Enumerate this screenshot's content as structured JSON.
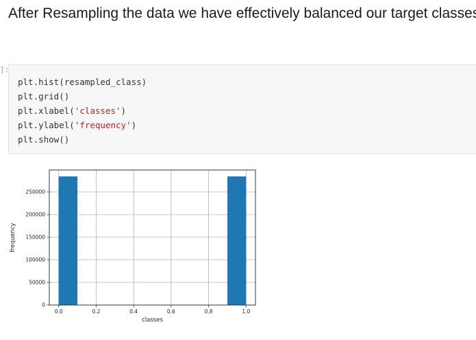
{
  "markdown": {
    "text": "After Resampling the data we have effectively balanced our target classes"
  },
  "code_cell": {
    "prompt": "]:",
    "lines": [
      {
        "parts": [
          {
            "text": "plt.hist(resampled_class)",
            "kind": "plain"
          }
        ]
      },
      {
        "parts": [
          {
            "text": "plt.grid()",
            "kind": "plain"
          }
        ]
      },
      {
        "parts": [
          {
            "text": "plt.xlabel(",
            "kind": "plain"
          },
          {
            "text": "'classes'",
            "kind": "string"
          },
          {
            "text": ")",
            "kind": "plain"
          }
        ]
      },
      {
        "parts": [
          {
            "text": "plt.ylabel(",
            "kind": "plain"
          },
          {
            "text": "'frequency'",
            "kind": "string"
          },
          {
            "text": ")",
            "kind": "plain"
          }
        ]
      },
      {
        "parts": [
          {
            "text": "plt.show()",
            "kind": "plain"
          }
        ]
      }
    ]
  },
  "colors": {
    "bar": "#1f77b4",
    "string": "#ba2121",
    "grid": "#b0b0b0"
  },
  "chart_data": {
    "type": "bar",
    "title": "",
    "xlabel": "classes",
    "ylabel": "frequency",
    "grid": true,
    "xlim": [
      -0.05,
      1.05
    ],
    "ylim": [
      0,
      298500
    ],
    "x_ticks": [
      0.0,
      0.2,
      0.4,
      0.6,
      0.8,
      1.0
    ],
    "x_tick_labels": [
      "0.0",
      "0.2",
      "0.4",
      "0.6",
      "0.8",
      "1.0"
    ],
    "y_ticks": [
      0,
      50000,
      100000,
      150000,
      200000,
      250000
    ],
    "y_tick_labels": [
      "0",
      "50000",
      "100000",
      "150000",
      "200000",
      "250000"
    ],
    "bins": [
      {
        "start": 0.0,
        "end": 0.1,
        "value": 284315
      },
      {
        "start": 0.1,
        "end": 0.2,
        "value": 0
      },
      {
        "start": 0.2,
        "end": 0.3,
        "value": 0
      },
      {
        "start": 0.3,
        "end": 0.4,
        "value": 0
      },
      {
        "start": 0.4,
        "end": 0.5,
        "value": 0
      },
      {
        "start": 0.5,
        "end": 0.6,
        "value": 0
      },
      {
        "start": 0.6,
        "end": 0.7,
        "value": 0
      },
      {
        "start": 0.7,
        "end": 0.8,
        "value": 0
      },
      {
        "start": 0.8,
        "end": 0.9,
        "value": 0
      },
      {
        "start": 0.9,
        "end": 1.0,
        "value": 284315
      }
    ]
  }
}
